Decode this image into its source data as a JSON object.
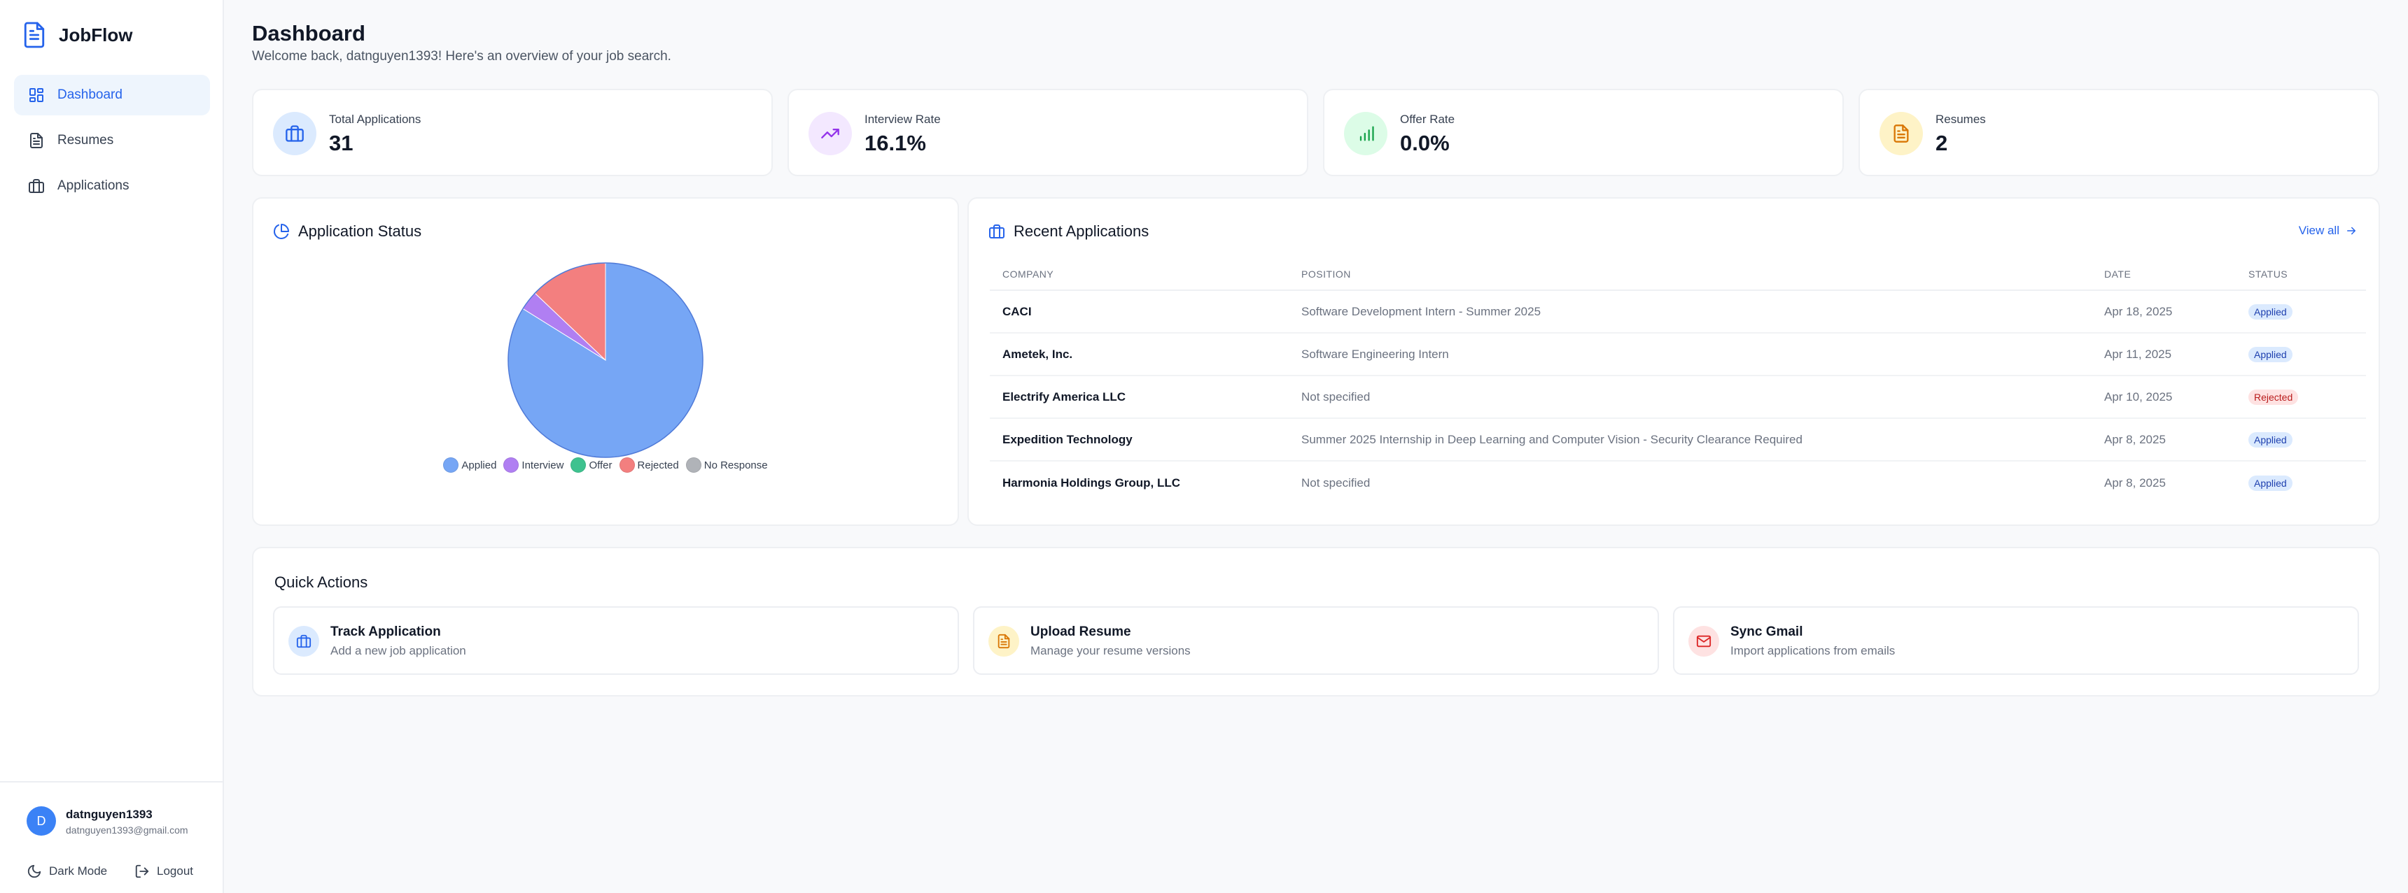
{
  "app": {
    "name": "JobFlow"
  },
  "sidebar": {
    "items": [
      {
        "label": "Dashboard",
        "icon": "grid-icon",
        "active": true
      },
      {
        "label": "Resumes",
        "icon": "document-icon",
        "active": false
      },
      {
        "label": "Applications",
        "icon": "briefcase-icon",
        "active": false
      }
    ],
    "user": {
      "initial": "D",
      "name": "datnguyen1393",
      "email": "datnguyen1393@gmail.com"
    },
    "dark_mode_label": "Dark Mode",
    "logout_label": "Logout"
  },
  "header": {
    "title": "Dashboard",
    "subtitle": "Welcome back, datnguyen1393! Here's an overview of your job search."
  },
  "stats": [
    {
      "label": "Total Applications",
      "value": "31",
      "icon": "briefcase-icon",
      "color": "#2563eb",
      "bg": "#dbeafe"
    },
    {
      "label": "Interview Rate",
      "value": "16.1%",
      "icon": "trending-up-icon",
      "color": "#9333ea",
      "bg": "#f3e8ff"
    },
    {
      "label": "Offer Rate",
      "value": "0.0%",
      "icon": "bar-chart-icon",
      "color": "#16a34a",
      "bg": "#dcfce7"
    },
    {
      "label": "Resumes",
      "value": "2",
      "icon": "document-icon",
      "color": "#d97706",
      "bg": "#fef3c7"
    }
  ],
  "status_panel": {
    "title": "Application Status",
    "legend": [
      "Applied",
      "Interview",
      "Offer",
      "Rejected",
      "No Response"
    ]
  },
  "chart_data": {
    "type": "pie",
    "title": "Application Status",
    "categories": [
      "Applied",
      "Interview",
      "Offer",
      "Rejected",
      "No Response"
    ],
    "values": [
      26,
      1,
      0,
      4,
      0
    ],
    "colors": [
      "#76a6f5",
      "#b07ff2",
      "#3ec28f",
      "#f37f7f",
      "#b0b3b8"
    ],
    "legend_position": "bottom"
  },
  "recent": {
    "title": "Recent Applications",
    "view_all": "View all",
    "columns": [
      "COMPANY",
      "POSITION",
      "DATE",
      "STATUS"
    ],
    "rows": [
      {
        "company": "CACI",
        "position": "Software Development Intern - Summer 2025",
        "date": "Apr 18, 2025",
        "status": "Applied"
      },
      {
        "company": "Ametek, Inc.",
        "position": "Software Engineering Intern",
        "date": "Apr 11, 2025",
        "status": "Applied"
      },
      {
        "company": "Electrify America LLC",
        "position": "Not specified",
        "date": "Apr 10, 2025",
        "status": "Rejected"
      },
      {
        "company": "Expedition Technology",
        "position": "Summer 2025 Internship in Deep Learning and Computer Vision - Security Clearance Required",
        "date": "Apr 8, 2025",
        "status": "Applied"
      },
      {
        "company": "Harmonia Holdings Group, LLC",
        "position": "Not specified",
        "date": "Apr 8, 2025",
        "status": "Applied"
      }
    ]
  },
  "quick_actions": {
    "title": "Quick Actions",
    "items": [
      {
        "label": "Track Application",
        "desc": "Add a new job application",
        "icon": "briefcase-icon",
        "color": "#2563eb",
        "bg": "#dbeafe"
      },
      {
        "label": "Upload Resume",
        "desc": "Manage your resume versions",
        "icon": "document-icon",
        "color": "#d97706",
        "bg": "#fef3c7"
      },
      {
        "label": "Sync Gmail",
        "desc": "Import applications from emails",
        "icon": "mail-icon",
        "color": "#dc2626",
        "bg": "#fee2e2"
      }
    ]
  }
}
